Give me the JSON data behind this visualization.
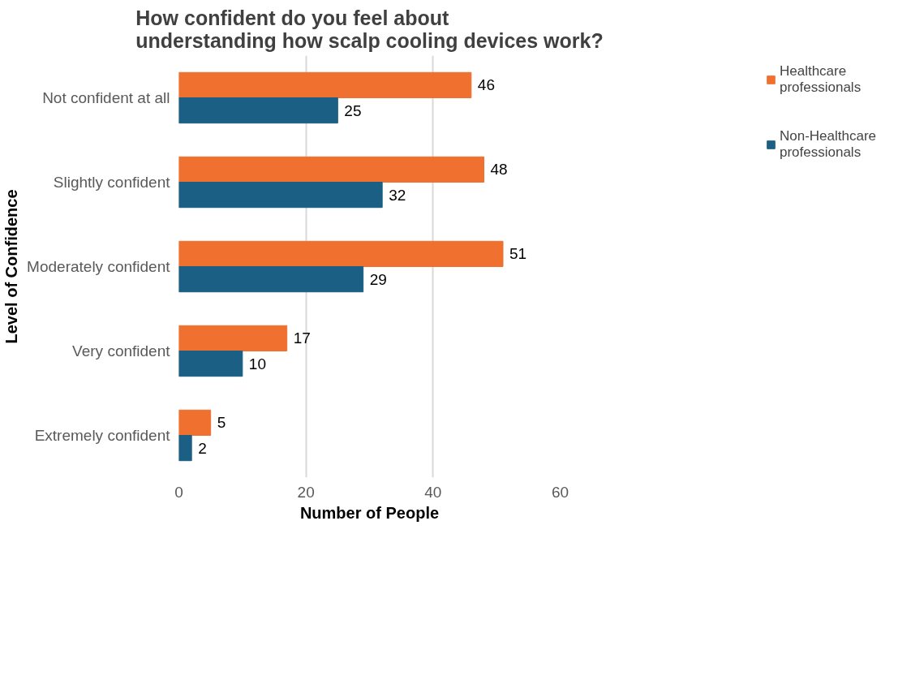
{
  "chart_data": {
    "type": "bar",
    "orientation": "horizontal",
    "title": "How confident do you feel about understanding how scalp cooling devices work?",
    "xlabel": "Number of People",
    "ylabel": "Level of Confidence",
    "categories": [
      "Not confident at all",
      "Slightly confident",
      "Moderately confident",
      "Very confident",
      "Extremely confident"
    ],
    "series": [
      {
        "name": "Healthcare professionals",
        "color": "#f07030",
        "values": [
          46,
          48,
          51,
          17,
          5
        ]
      },
      {
        "name": "Non-Healthcare professionals",
        "color": "#1c5f85",
        "values": [
          25,
          32,
          29,
          10,
          2
        ]
      }
    ],
    "xlim": [
      0,
      60
    ],
    "xticks": [
      0,
      20,
      40,
      60
    ],
    "grid": "x",
    "legend": "right",
    "data_labels": true
  }
}
